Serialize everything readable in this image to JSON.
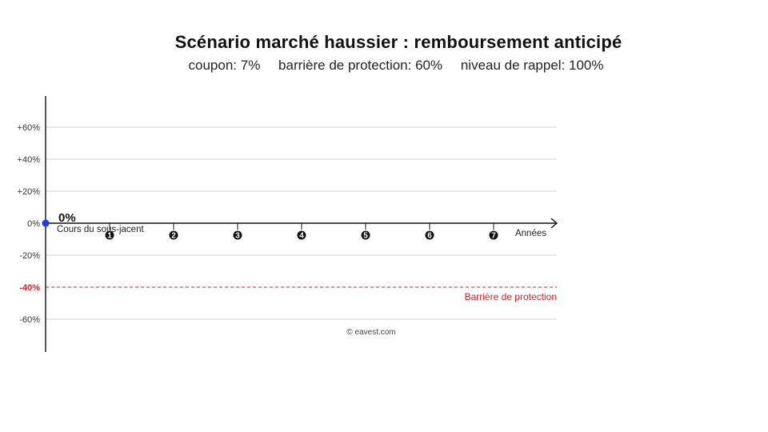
{
  "chart_data": {
    "type": "line",
    "title": "Scénario marché haussier : remboursement anticipé",
    "subtitle_items": [
      "coupon: 7%",
      "barrière de protection: 60%",
      "niveau de rappel: 100%"
    ],
    "xlabel": "Années",
    "x_ticks": [
      "1",
      "2",
      "3",
      "4",
      "5",
      "6",
      "7"
    ],
    "y_ticks": [
      {
        "value": 60,
        "label": "+60%"
      },
      {
        "value": 40,
        "label": "+40%"
      },
      {
        "value": 20,
        "label": "+20%"
      },
      {
        "value": 0,
        "label": "0%"
      },
      {
        "value": -20,
        "label": "-20%"
      },
      {
        "value": -40,
        "label": "-40%"
      },
      {
        "value": -60,
        "label": "-60%"
      }
    ],
    "ylim": [
      -80,
      80
    ],
    "xlim": [
      0,
      7.5
    ],
    "grid": true,
    "series": [
      {
        "name": "Cours du sous-jacent",
        "points": [
          {
            "x": 0,
            "y": 0
          }
        ],
        "point_label": "0%"
      }
    ],
    "reference_lines": [
      {
        "value": 0,
        "style": "dotted",
        "color": "#3a4fd0"
      },
      {
        "value": -40,
        "style": "dashed",
        "color": "#e02020",
        "label": "Barrière de protection"
      }
    ],
    "credit": "© eavest.com"
  },
  "colors": {
    "barrier": "#e02020",
    "level": "#3a4fd0",
    "point": "#1a3cf0",
    "grid": "#cccccc"
  }
}
